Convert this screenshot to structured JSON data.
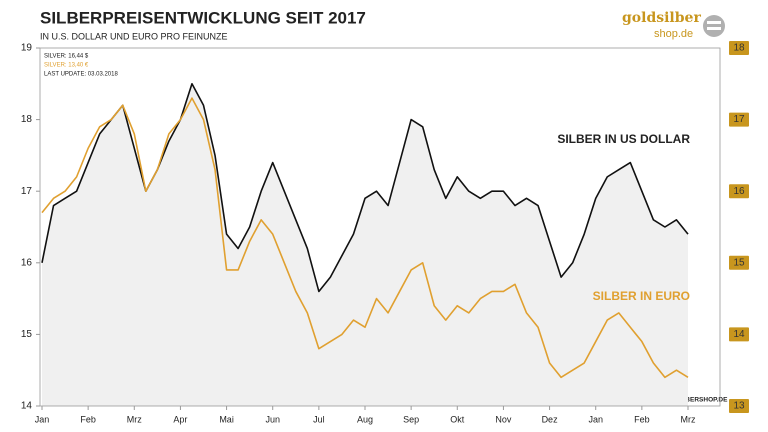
{
  "chart_data": {
    "type": "line",
    "title": "SILBERPREISENTWICKLUNG  SEIT 2017",
    "subtitle": "IN U.S. DOLLAR UND EURO PRO FEINUNZE",
    "info": [
      "SILVER: 16,44  $",
      "SILVER: 13,40  €",
      "LAST UPDATE: 03.03.2018"
    ],
    "source": "BLASCHZOKRESEARCH.DE  -  GOLDSILBERSHOP.DE",
    "logo": [
      "goldsilber",
      "shop.de"
    ],
    "categories": [
      "Jan",
      null,
      null,
      null,
      "Feb",
      null,
      null,
      null,
      "Mrz",
      null,
      null,
      null,
      "Apr",
      null,
      null,
      null,
      "Mai",
      null,
      null,
      null,
      "Jun",
      null,
      null,
      null,
      "Jul",
      null,
      null,
      null,
      "Aug",
      null,
      null,
      null,
      "Sep",
      null,
      null,
      null,
      "Okt",
      null,
      null,
      null,
      "Nov",
      null,
      null,
      null,
      "Dez",
      null,
      null,
      null,
      "Jan",
      null,
      null,
      null,
      "Feb",
      null,
      null,
      null,
      "Mrz"
    ],
    "series": [
      {
        "name": "SILBER IN US DOLLAR",
        "color": "#111111",
        "fill": "#f0f0f0",
        "values": [
          16.0,
          16.8,
          16.9,
          17.0,
          17.4,
          17.8,
          18.0,
          18.2,
          17.6,
          17.0,
          17.3,
          17.7,
          18.0,
          18.5,
          18.2,
          17.5,
          16.4,
          16.2,
          16.5,
          17.0,
          17.4,
          17.0,
          16.6,
          16.2,
          15.6,
          15.8,
          16.1,
          16.4,
          16.9,
          17.0,
          16.8,
          17.4,
          18.0,
          17.9,
          17.3,
          16.9,
          17.2,
          17.0,
          16.9,
          17.0,
          17.0,
          16.8,
          16.9,
          16.8,
          16.3,
          15.8,
          16.0,
          16.4,
          16.9,
          17.2,
          17.3,
          17.4,
          17.0,
          16.6,
          16.5,
          16.6,
          16.4
        ]
      },
      {
        "name": "SILBER IN EURO",
        "color": "#e0a030",
        "axis": "y2",
        "values": [
          15.7,
          15.9,
          16.0,
          16.2,
          16.6,
          16.9,
          17.0,
          17.2,
          16.8,
          16.0,
          16.3,
          16.8,
          17.0,
          17.3,
          17.0,
          16.3,
          14.9,
          14.9,
          15.3,
          15.6,
          15.4,
          15.0,
          14.6,
          14.3,
          13.8,
          13.9,
          14.0,
          14.2,
          14.1,
          14.5,
          14.3,
          14.6,
          14.9,
          15.0,
          14.4,
          14.2,
          14.4,
          14.3,
          14.5,
          14.6,
          14.6,
          14.7,
          14.3,
          14.1,
          13.6,
          13.4,
          13.5,
          13.6,
          13.9,
          14.2,
          14.3,
          14.1,
          13.9,
          13.6,
          13.4,
          13.5,
          13.4
        ]
      }
    ],
    "ylim": [
      14,
      19
    ],
    "yticks": [
      14,
      15,
      16,
      17,
      18,
      19
    ],
    "y2lim": [
      13,
      18
    ],
    "y2ticks": [
      13,
      14,
      15,
      16,
      17,
      18
    ],
    "y2_color": "#c8961e"
  }
}
